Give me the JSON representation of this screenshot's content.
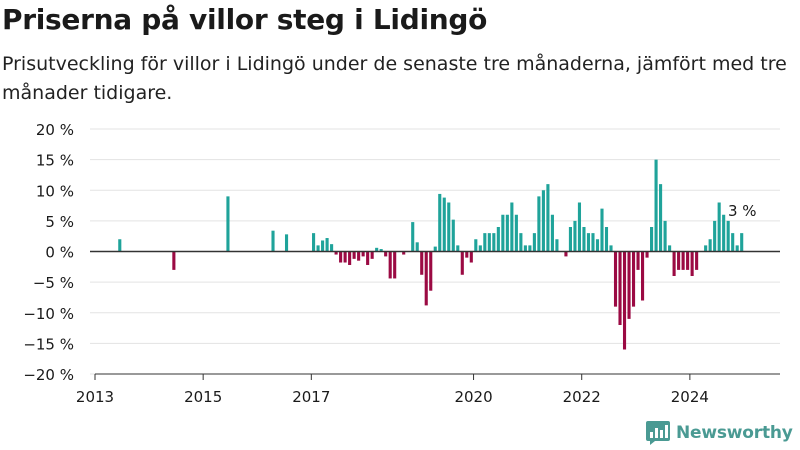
{
  "colors": {
    "positive": "#1fa39a",
    "negative": "#9b0a43",
    "grid": "#e3e3e3",
    "axis": "#333333",
    "text": "#1a1a1a",
    "brand": "#4a9a93"
  },
  "logo": {
    "text": "Newsworthy",
    "icon": "newsworthy-bar-chart-icon"
  },
  "chart_data": {
    "type": "bar",
    "title": "Priserna på villor steg i Lidingö",
    "subtitle": "Prisutveckling för villor i Lidingö under de senaste tre månaderna, jämfört med tre månader tidigare.",
    "xlabel": "",
    "ylabel": "",
    "x_unit": "month",
    "xlim": [
      "2013-01",
      "2025-09"
    ],
    "ylim": [
      -20,
      20
    ],
    "yticks": [
      20,
      15,
      10,
      5,
      0,
      -5,
      -10,
      -15,
      -20
    ],
    "ytick_labels": [
      "20 %",
      "15 %",
      "10 %",
      "5 %",
      "0 %",
      "−5 %",
      "−10 %",
      "−15 %",
      "−20 %"
    ],
    "xticks": [
      "2013",
      "2015",
      "2017",
      "2020",
      "2022",
      "2024"
    ],
    "grid": true,
    "legend": "none",
    "last_value_label": "3 %",
    "series": [
      {
        "points": [
          {
            "x": "2013-06",
            "y": 2
          },
          {
            "x": "2014-06",
            "y": -3
          },
          {
            "x": "2015-06",
            "y": 9
          },
          {
            "x": "2016-04",
            "y": 3.4
          },
          {
            "x": "2016-07",
            "y": 2.8
          },
          {
            "x": "2017-01",
            "y": 3
          },
          {
            "x": "2017-02",
            "y": 1
          },
          {
            "x": "2017-03",
            "y": 1.8
          },
          {
            "x": "2017-04",
            "y": 2.2
          },
          {
            "x": "2017-05",
            "y": 1.2
          },
          {
            "x": "2017-06",
            "y": -0.5
          },
          {
            "x": "2017-07",
            "y": -1.8
          },
          {
            "x": "2017-08",
            "y": -1.8
          },
          {
            "x": "2017-09",
            "y": -2.2
          },
          {
            "x": "2017-10",
            "y": -1.2
          },
          {
            "x": "2017-11",
            "y": -1.5
          },
          {
            "x": "2017-12",
            "y": -0.8
          },
          {
            "x": "2018-01",
            "y": -2.2
          },
          {
            "x": "2018-02",
            "y": -1.2
          },
          {
            "x": "2018-03",
            "y": 0.6
          },
          {
            "x": "2018-04",
            "y": 0.4
          },
          {
            "x": "2018-05",
            "y": -0.8
          },
          {
            "x": "2018-06",
            "y": -4.4
          },
          {
            "x": "2018-07",
            "y": -4.4
          },
          {
            "x": "2018-09",
            "y": -0.5
          },
          {
            "x": "2018-11",
            "y": 4.8
          },
          {
            "x": "2018-12",
            "y": 1.5
          },
          {
            "x": "2019-01",
            "y": -3.8
          },
          {
            "x": "2019-02",
            "y": -8.8
          },
          {
            "x": "2019-03",
            "y": -6.4
          },
          {
            "x": "2019-04",
            "y": 0.8
          },
          {
            "x": "2019-05",
            "y": 9.4
          },
          {
            "x": "2019-06",
            "y": 8.8
          },
          {
            "x": "2019-07",
            "y": 8
          },
          {
            "x": "2019-08",
            "y": 5.2
          },
          {
            "x": "2019-09",
            "y": 1
          },
          {
            "x": "2019-10",
            "y": -3.8
          },
          {
            "x": "2019-11",
            "y": -1
          },
          {
            "x": "2019-12",
            "y": -1.8
          },
          {
            "x": "2020-01",
            "y": 2
          },
          {
            "x": "2020-02",
            "y": 1
          },
          {
            "x": "2020-03",
            "y": 3
          },
          {
            "x": "2020-04",
            "y": 3
          },
          {
            "x": "2020-05",
            "y": 3
          },
          {
            "x": "2020-06",
            "y": 4
          },
          {
            "x": "2020-07",
            "y": 6
          },
          {
            "x": "2020-08",
            "y": 6
          },
          {
            "x": "2020-09",
            "y": 8
          },
          {
            "x": "2020-10",
            "y": 6
          },
          {
            "x": "2020-11",
            "y": 3
          },
          {
            "x": "2020-12",
            "y": 1
          },
          {
            "x": "2021-01",
            "y": 1
          },
          {
            "x": "2021-02",
            "y": 3
          },
          {
            "x": "2021-03",
            "y": 9
          },
          {
            "x": "2021-04",
            "y": 10
          },
          {
            "x": "2021-05",
            "y": 11
          },
          {
            "x": "2021-06",
            "y": 6
          },
          {
            "x": "2021-07",
            "y": 2
          },
          {
            "x": "2021-09",
            "y": -0.8
          },
          {
            "x": "2021-10",
            "y": 4
          },
          {
            "x": "2021-11",
            "y": 5
          },
          {
            "x": "2021-12",
            "y": 8
          },
          {
            "x": "2022-01",
            "y": 4
          },
          {
            "x": "2022-02",
            "y": 3
          },
          {
            "x": "2022-03",
            "y": 3
          },
          {
            "x": "2022-04",
            "y": 2
          },
          {
            "x": "2022-05",
            "y": 7
          },
          {
            "x": "2022-06",
            "y": 4
          },
          {
            "x": "2022-07",
            "y": 1
          },
          {
            "x": "2022-08",
            "y": -9
          },
          {
            "x": "2022-09",
            "y": -12
          },
          {
            "x": "2022-10",
            "y": -16
          },
          {
            "x": "2022-11",
            "y": -11
          },
          {
            "x": "2022-12",
            "y": -9
          },
          {
            "x": "2023-01",
            "y": -3
          },
          {
            "x": "2023-02",
            "y": -8
          },
          {
            "x": "2023-03",
            "y": -1
          },
          {
            "x": "2023-04",
            "y": 4
          },
          {
            "x": "2023-05",
            "y": 15
          },
          {
            "x": "2023-06",
            "y": 11
          },
          {
            "x": "2023-07",
            "y": 5
          },
          {
            "x": "2023-08",
            "y": 1
          },
          {
            "x": "2023-09",
            "y": -4
          },
          {
            "x": "2023-10",
            "y": -3
          },
          {
            "x": "2023-11",
            "y": -3
          },
          {
            "x": "2023-12",
            "y": -3
          },
          {
            "x": "2024-01",
            "y": -4
          },
          {
            "x": "2024-02",
            "y": -3
          },
          {
            "x": "2024-04",
            "y": 1
          },
          {
            "x": "2024-05",
            "y": 2
          },
          {
            "x": "2024-06",
            "y": 5
          },
          {
            "x": "2024-07",
            "y": 8
          },
          {
            "x": "2024-08",
            "y": 6
          },
          {
            "x": "2024-09",
            "y": 5
          },
          {
            "x": "2024-10",
            "y": 3
          },
          {
            "x": "2024-11",
            "y": 1
          },
          {
            "x": "2024-12",
            "y": 3
          }
        ]
      }
    ]
  }
}
